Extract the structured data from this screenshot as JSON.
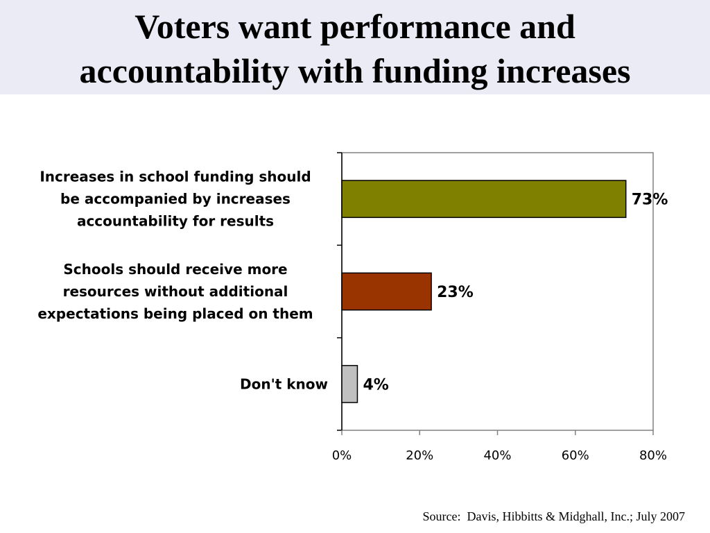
{
  "slide": {
    "title_lines": [
      "Voters want performance and",
      "accountability with funding increases"
    ],
    "source": "Source:  Davis, Hibbitts & Midghall, Inc.; July 2007"
  },
  "chart_data": {
    "type": "bar",
    "orientation": "horizontal",
    "categories": [
      [
        "Increases in school funding should",
        "be accompanied by increases",
        "accountability for results"
      ],
      [
        "Schools should receive more",
        "resources without additional",
        "expectations being placed on them"
      ],
      [
        "Don't know"
      ]
    ],
    "values": [
      73,
      23,
      4
    ],
    "value_labels": [
      "73%",
      "23%",
      "4%"
    ],
    "colors": [
      "#808000",
      "#993300",
      "#c0c0c0"
    ],
    "xlim": [
      0,
      80
    ],
    "xticks": [
      0,
      20,
      40,
      60,
      80
    ],
    "xtick_labels": [
      "0%",
      "20%",
      "40%",
      "60%",
      "80%"
    ],
    "grid": false,
    "legend": "none"
  }
}
